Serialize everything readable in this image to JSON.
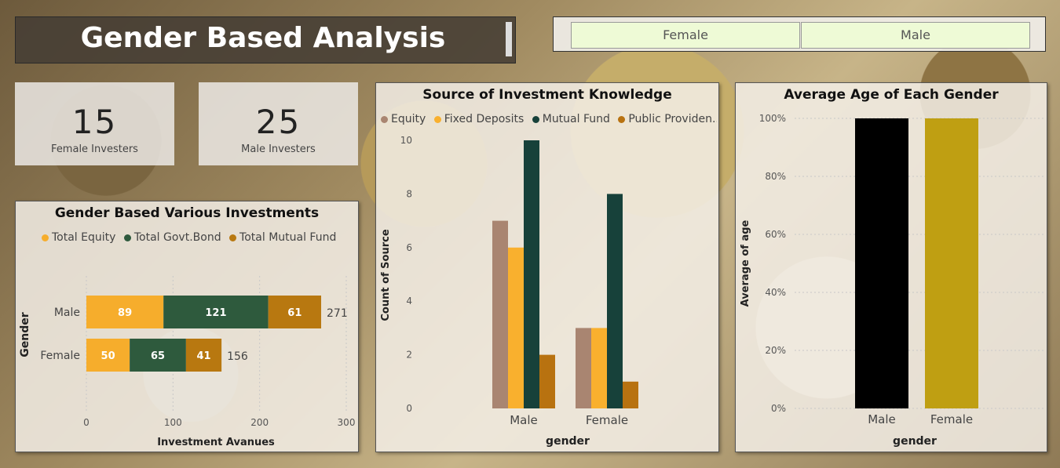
{
  "title": "Gender Based Analysis",
  "slicer": {
    "options": [
      "Female",
      "Male"
    ]
  },
  "kpis": [
    {
      "value": "15",
      "label": "Female Investers"
    },
    {
      "value": "25",
      "label": "Male Investers"
    }
  ],
  "chart_data": [
    {
      "type": "bar",
      "orientation": "horizontal-stacked",
      "title": "Gender Based Various Investments",
      "categories": [
        "Male",
        "Female"
      ],
      "series": [
        {
          "name": "Total Equity",
          "values": [
            89,
            50
          ],
          "color": "#f6ad2c"
        },
        {
          "name": "Total Govt.Bond",
          "values": [
            121,
            65
          ],
          "color": "#2e5a3d"
        },
        {
          "name": "Total Mutual Fund",
          "values": [
            61,
            41
          ],
          "color": "#b87810"
        }
      ],
      "totals": [
        271,
        156
      ],
      "xlabel": "Investment Avanues",
      "ylabel": "Gender",
      "xticks": [
        0,
        100,
        200,
        300
      ],
      "xlim": [
        0,
        300
      ],
      "legend": "top"
    },
    {
      "type": "bar",
      "orientation": "vertical-clustered",
      "title": "Source of Investment Knowledge",
      "categories": [
        "Male",
        "Female"
      ],
      "series": [
        {
          "name": "Equity",
          "values": [
            7,
            3
          ],
          "color": "#a98571"
        },
        {
          "name": "Fixed Deposits",
          "values": [
            6,
            3
          ],
          "color": "#f9b02e"
        },
        {
          "name": "Mutual Fund",
          "values": [
            10,
            8
          ],
          "color": "#17413a"
        },
        {
          "name": "Public Providen...",
          "values": [
            2,
            1
          ],
          "color": "#b87210"
        }
      ],
      "xlabel": "gender",
      "ylabel": "Count of Source",
      "yticks": [
        0,
        2,
        4,
        6,
        8,
        10
      ],
      "ylim": [
        0,
        10
      ],
      "legend": "top"
    },
    {
      "type": "bar",
      "orientation": "vertical",
      "title": "Average Age of Each Gender",
      "categories": [
        "Male",
        "Female"
      ],
      "values": [
        1.0,
        1.0
      ],
      "colors": [
        "#000000",
        "#bf9f12"
      ],
      "xlabel": "gender",
      "ylabel": "Average of age",
      "yticks": [
        "0%",
        "20%",
        "40%",
        "60%",
        "80%",
        "100%"
      ],
      "ylim": [
        0,
        1
      ],
      "grid": true
    }
  ]
}
